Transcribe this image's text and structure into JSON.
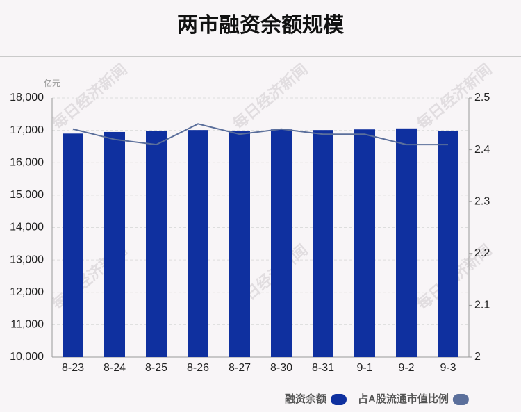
{
  "chart_data": {
    "type": "bar",
    "title": "两市融资余额规模",
    "unit": "亿元",
    "watermark": "每日经济新闻",
    "categories": [
      "8-23",
      "8-24",
      "8-25",
      "8-26",
      "8-27",
      "8-30",
      "8-31",
      "9-1",
      "9-2",
      "9-3"
    ],
    "series": [
      {
        "name": "融资余额",
        "type": "bar",
        "color": "#0f309f",
        "values": [
          16900,
          16950,
          16990,
          17010,
          16970,
          17030,
          17010,
          17030,
          17060,
          16990
        ]
      },
      {
        "name": "占A股流通市值比例",
        "type": "line",
        "axis": "y2",
        "color": "#5b6f9b",
        "values": [
          2.44,
          2.42,
          2.41,
          2.45,
          2.43,
          2.44,
          2.43,
          2.43,
          2.41,
          2.41
        ]
      }
    ],
    "ylim": [
      10000,
      18000
    ],
    "yticks": [
      {
        "value": 10000,
        "label": "10,000"
      },
      {
        "value": 11000,
        "label": "11,000"
      },
      {
        "value": 12000,
        "label": "12,000"
      },
      {
        "value": 13000,
        "label": "13,000"
      },
      {
        "value": 14000,
        "label": "14,000"
      },
      {
        "value": 15000,
        "label": "15,000"
      },
      {
        "value": 16000,
        "label": "16,000"
      },
      {
        "value": 17000,
        "label": "17,000"
      },
      {
        "value": 18000,
        "label": "18,000"
      }
    ],
    "y2lim": [
      2,
      2.5
    ],
    "y2ticks": [
      2,
      2.1,
      2.2,
      2.3,
      2.4,
      2.5
    ],
    "grid": true
  }
}
